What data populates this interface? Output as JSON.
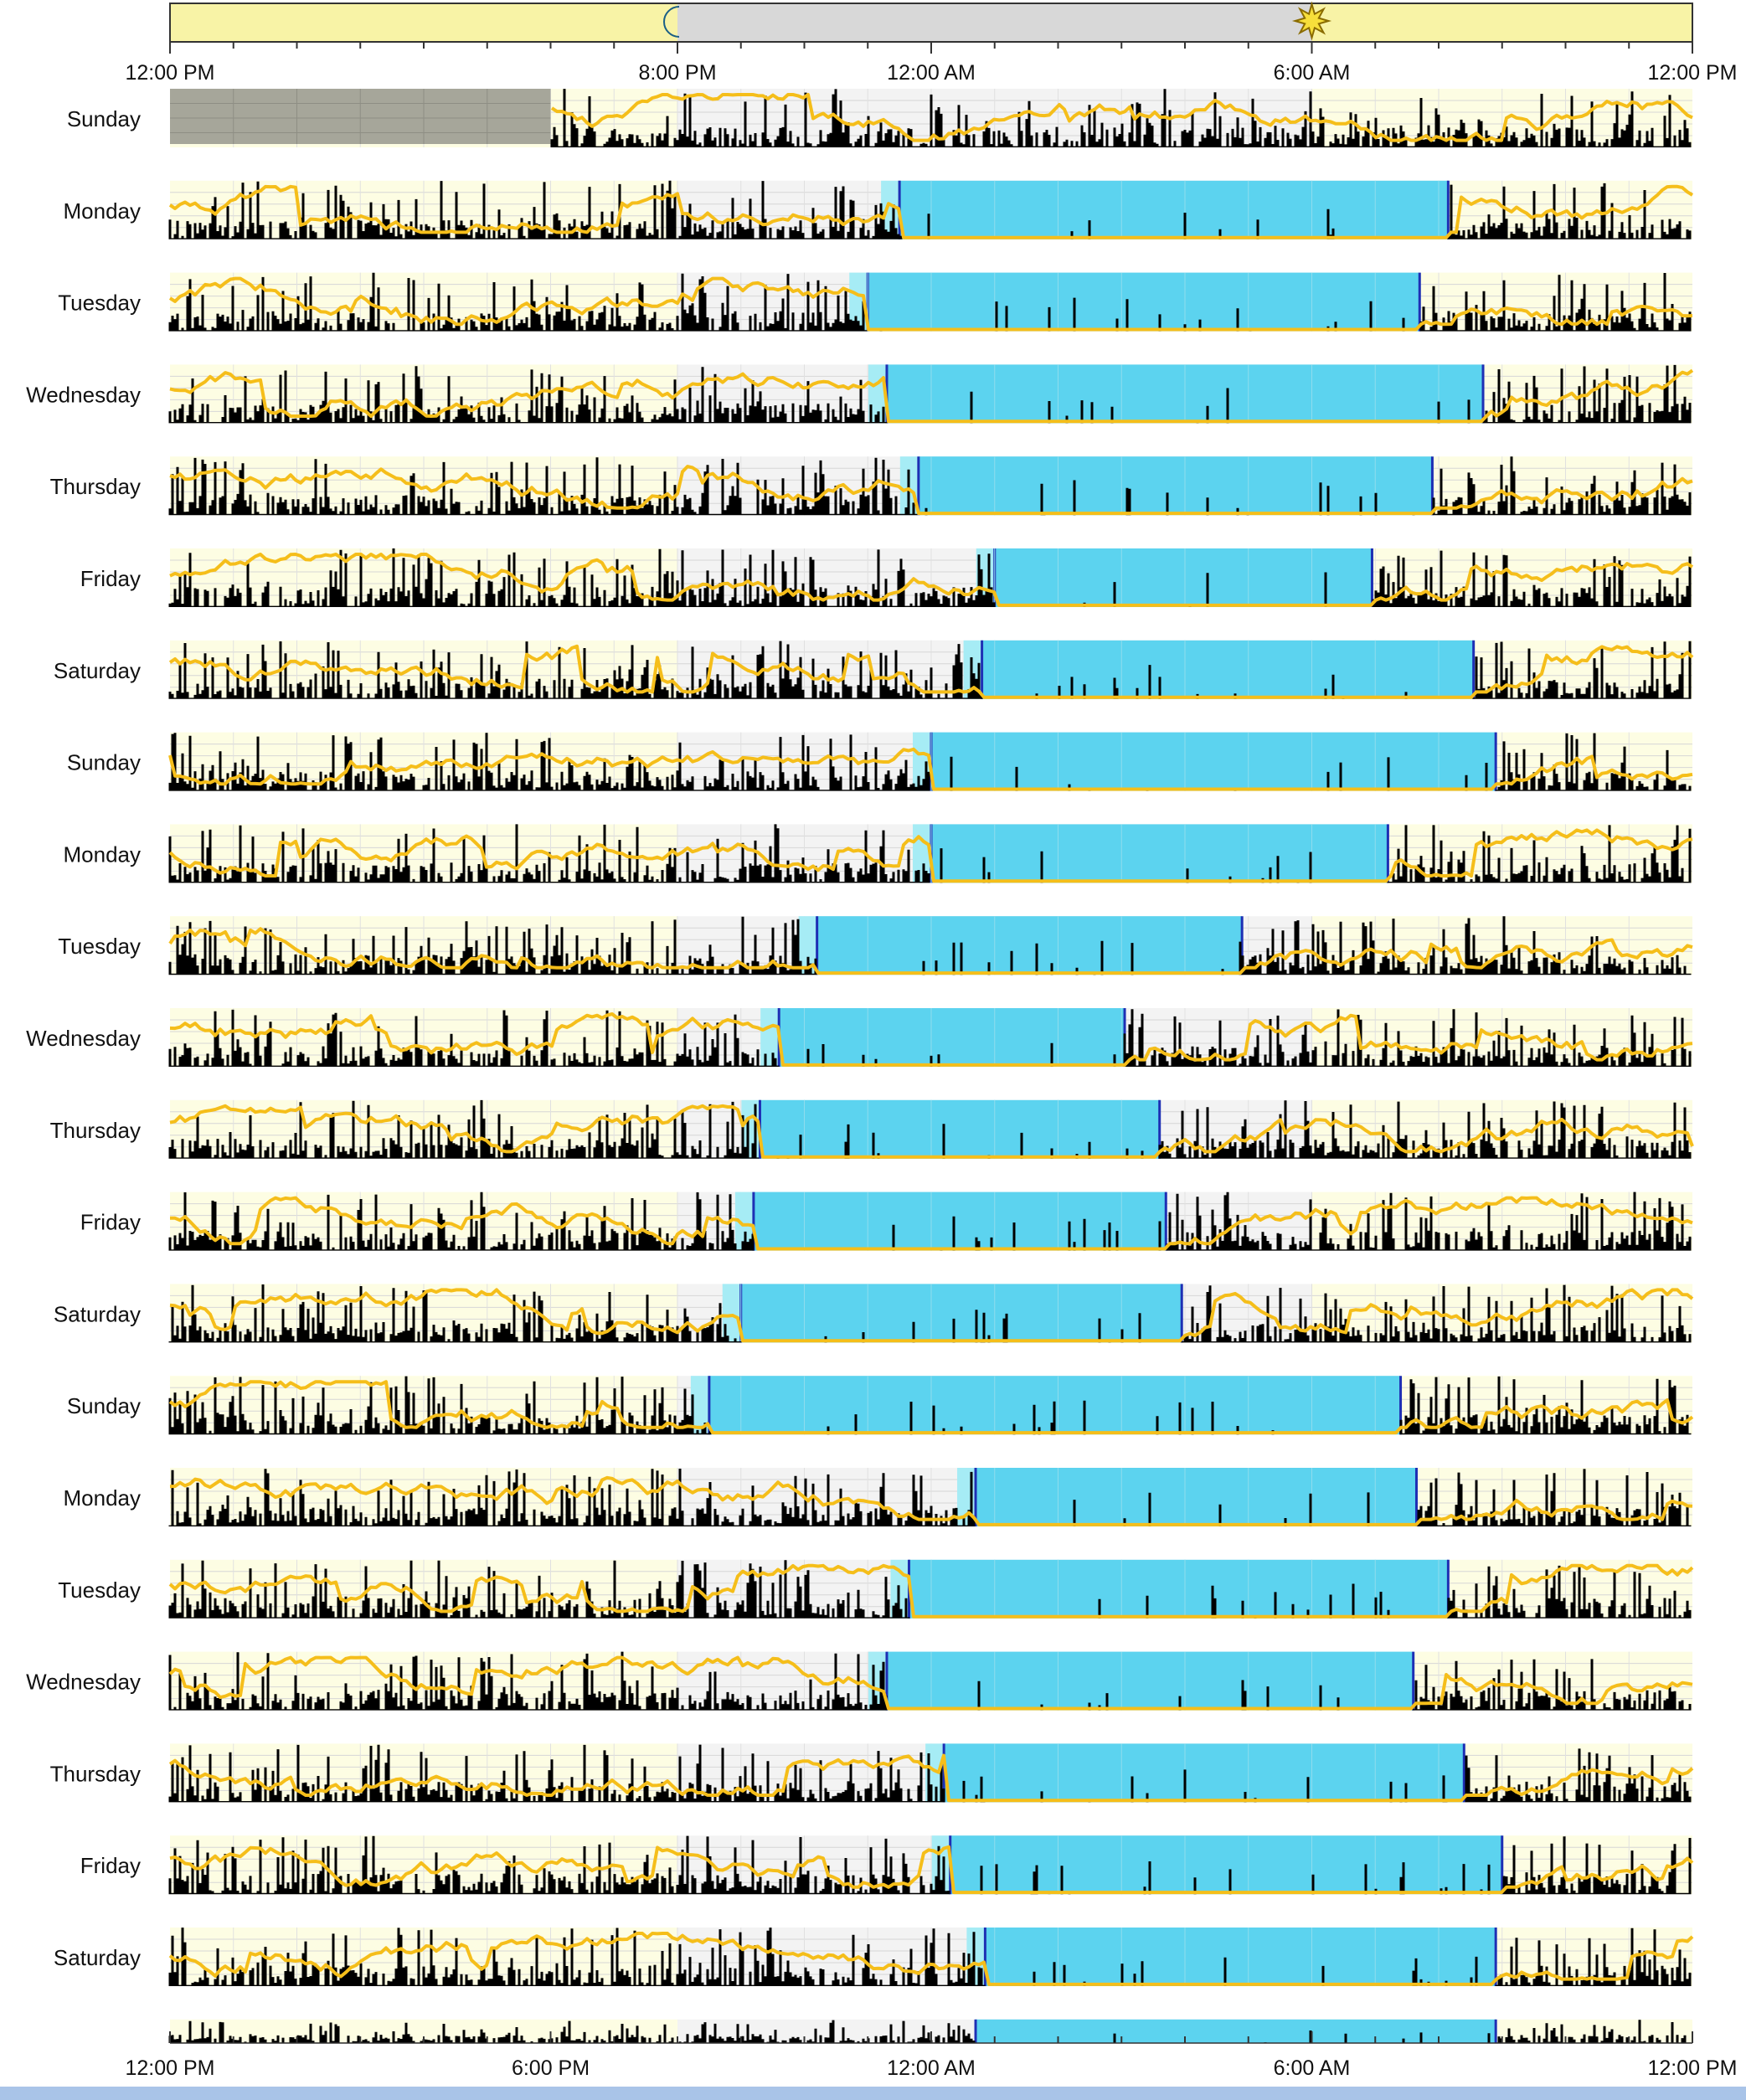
{
  "chart_data": {
    "type": "actogram",
    "title": "",
    "x_axis": {
      "range_hours": [
        12,
        36
      ],
      "top_tick_labels": [
        {
          "hour": 12,
          "label": "12:00 PM"
        },
        {
          "hour": 20,
          "label": "8:00 PM"
        },
        {
          "hour": 24,
          "label": "12:00 AM"
        },
        {
          "hour": 30,
          "label": "6:00 AM"
        },
        {
          "hour": 36,
          "label": "12:00 PM"
        }
      ],
      "bottom_tick_labels": [
        {
          "hour": 12,
          "label": "12:00 PM"
        },
        {
          "hour": 18,
          "label": "6:00 PM"
        },
        {
          "hour": 24,
          "label": "12:00 AM"
        },
        {
          "hour": 30,
          "label": "6:00 AM"
        },
        {
          "hour": 36,
          "label": "12:00 PM"
        }
      ]
    },
    "daylight": {
      "sunset_hour": 20,
      "sunrise_hour": 30,
      "moon_icon": "moon-icon",
      "sun_icon": "sun-icon"
    },
    "colors": {
      "daylight": "#fdfde3",
      "daylight_bar": "#f8f3a6",
      "night": "#f3f3f3",
      "night_bar": "#d8d8d8",
      "sleep": "#5cd3ef",
      "sleep_onset_fringe": "#a6ecf5",
      "sleep_marker": "#1e2fb4",
      "activity": "#000000",
      "light_trace": "#f5be1a",
      "missing_data": "#a6a69a"
    },
    "rows": [
      {
        "label": "Sunday",
        "missing_until": 18.0
      },
      {
        "label": "Monday",
        "sleep_onset": 23.5,
        "sleep_offset": 32.15
      },
      {
        "label": "Tuesday",
        "sleep_onset": 23.0,
        "sleep_offset": 31.7
      },
      {
        "label": "Wednesday",
        "sleep_onset": 23.3,
        "sleep_offset": 32.7
      },
      {
        "label": "Thursday",
        "sleep_onset": 23.8,
        "sleep_offset": 31.9
      },
      {
        "label": "Friday",
        "sleep_onset": 25.0,
        "sleep_offset": 30.95
      },
      {
        "label": "Saturday",
        "sleep_onset": 24.8,
        "sleep_offset": 32.55
      },
      {
        "label": "Sunday",
        "sleep_onset": 24.0,
        "sleep_offset": 32.9
      },
      {
        "label": "Monday",
        "sleep_onset": 24.0,
        "sleep_offset": 31.2
      },
      {
        "label": "Tuesday",
        "sleep_onset": 22.2,
        "sleep_offset": 28.9
      },
      {
        "label": "Wednesday",
        "sleep_onset": 21.6,
        "sleep_offset": 27.05
      },
      {
        "label": "Thursday",
        "sleep_onset": 21.3,
        "sleep_offset": 27.6
      },
      {
        "label": "Friday",
        "sleep_onset": 21.2,
        "sleep_offset": 27.7
      },
      {
        "label": "Saturday",
        "sleep_onset": 21.0,
        "sleep_offset": 27.95
      },
      {
        "label": "Sunday",
        "sleep_onset": 20.5,
        "sleep_offset": 31.4
      },
      {
        "label": "Monday",
        "sleep_onset": 24.7,
        "sleep_offset": 31.65
      },
      {
        "label": "Tuesday",
        "sleep_onset": 23.65,
        "sleep_offset": 32.15
      },
      {
        "label": "Wednesday",
        "sleep_onset": 23.3,
        "sleep_offset": 31.6
      },
      {
        "label": "Thursday",
        "sleep_onset": 24.2,
        "sleep_offset": 32.4
      },
      {
        "label": "Friday",
        "sleep_onset": 24.3,
        "sleep_offset": 33.0
      },
      {
        "label": "Saturday",
        "sleep_onset": 24.85,
        "sleep_offset": 32.9
      },
      {
        "label": "",
        "sleep_onset": 24.7,
        "sleep_offset": 32.9,
        "partial": true
      }
    ]
  }
}
